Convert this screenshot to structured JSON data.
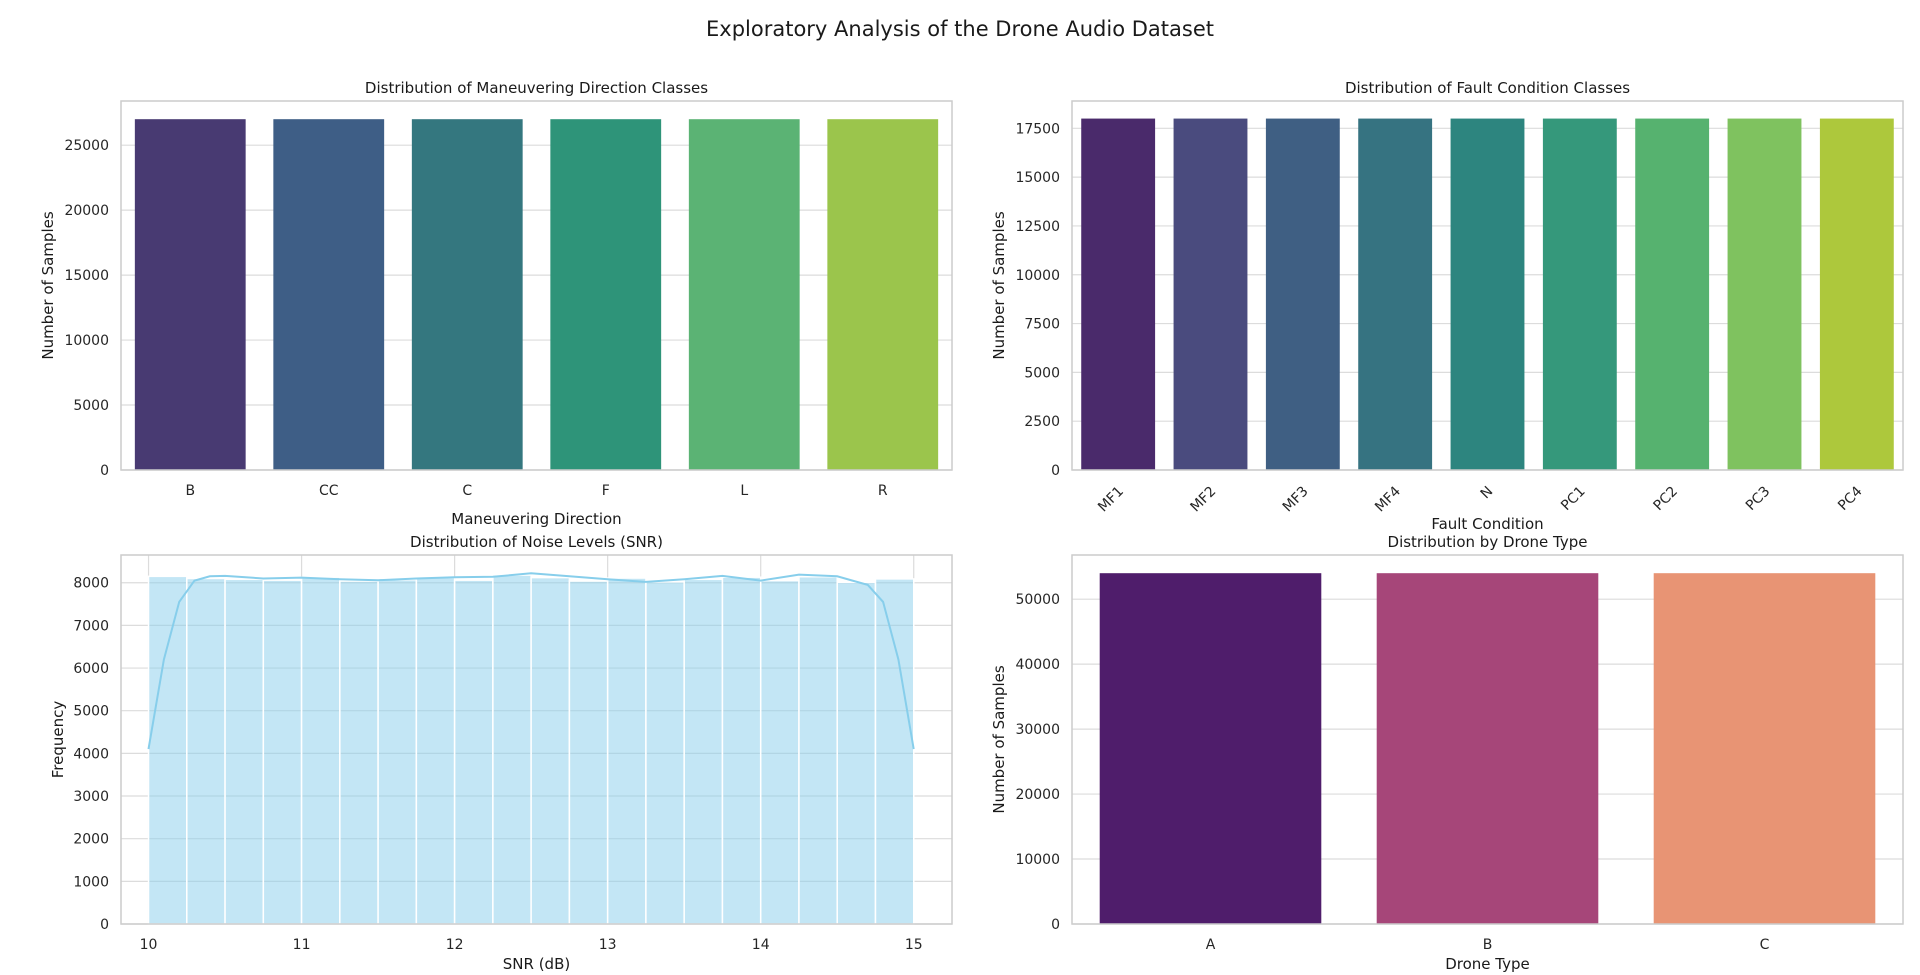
{
  "figure": {
    "title": "Exploratory Analysis of the Drone Audio Dataset"
  },
  "chart_data": [
    {
      "type": "bar",
      "title": "Distribution of Maneuvering Direction Classes",
      "xlabel": "Maneuvering Direction",
      "ylabel": "Number of Samples",
      "categories": [
        "B",
        "CC",
        "C",
        "F",
        "L",
        "R"
      ],
      "values": [
        27000,
        27000,
        27000,
        27000,
        27000,
        27000
      ],
      "colors": [
        "#483a72",
        "#3e5e86",
        "#34777f",
        "#2e9479",
        "#5bb374",
        "#9bc54c"
      ],
      "ylim": [
        0,
        28400
      ],
      "yticks": [
        0,
        5000,
        10000,
        15000,
        20000,
        25000
      ],
      "grid": true
    },
    {
      "type": "bar",
      "title": "Distribution of Fault Condition Classes",
      "xlabel": "Fault Condition",
      "ylabel": "Number of Samples",
      "categories": [
        "MF1",
        "MF2",
        "MF3",
        "MF4",
        "N",
        "PC1",
        "PC2",
        "PC3",
        "PC4"
      ],
      "values": [
        18000,
        18000,
        18000,
        18000,
        18000,
        18000,
        18000,
        18000,
        18000
      ],
      "colors": [
        "#4a2a6b",
        "#4a4b7e",
        "#3f5f83",
        "#367381",
        "#2d857f",
        "#35987b",
        "#56b26f",
        "#7fc25f",
        "#adc83c"
      ],
      "ylim": [
        0,
        18900
      ],
      "yticks": [
        0,
        2500,
        5000,
        7500,
        10000,
        12500,
        15000,
        17500
      ],
      "tick_rotation": 45,
      "grid": true
    },
    {
      "type": "histogram",
      "title": "Distribution of Noise Levels (SNR)",
      "xlabel": "SNR (dB)",
      "ylabel": "Frequency",
      "bin_edges": [
        10,
        10.25,
        10.5,
        10.75,
        11,
        11.25,
        11.5,
        11.75,
        12,
        12.25,
        12.5,
        12.75,
        13,
        13.25,
        13.5,
        13.75,
        14,
        14.25,
        14.5,
        14.75,
        15
      ],
      "counts": [
        8150,
        8100,
        8080,
        8060,
        8130,
        8040,
        8070,
        8120,
        8060,
        8180,
        8120,
        8040,
        8110,
        8020,
        8080,
        8130,
        8050,
        8140,
        8010,
        8090
      ],
      "kde": {
        "x": [
          10,
          10.1,
          10.2,
          10.3,
          10.4,
          10.5,
          10.75,
          11,
          11.25,
          11.5,
          11.75,
          12,
          12.25,
          12.5,
          12.75,
          13,
          13.25,
          13.5,
          13.75,
          14,
          14.25,
          14.5,
          14.6,
          14.7,
          14.8,
          14.9,
          15
        ],
        "y": [
          4100,
          6200,
          7550,
          8050,
          8150,
          8160,
          8100,
          8120,
          8080,
          8060,
          8100,
          8130,
          8140,
          8220,
          8150,
          8080,
          8020,
          8080,
          8160,
          8050,
          8190,
          8150,
          8050,
          7950,
          7550,
          6200,
          4100
        ]
      },
      "color": "#87ceeb",
      "xlim": [
        9.82,
        15.25
      ],
      "ylim": [
        0,
        8650
      ],
      "xticks": [
        10,
        11,
        12,
        13,
        14,
        15
      ],
      "yticks": [
        0,
        1000,
        2000,
        3000,
        4000,
        5000,
        6000,
        7000,
        8000
      ],
      "grid": true
    },
    {
      "type": "bar",
      "title": "Distribution by Drone Type",
      "xlabel": "Drone Type",
      "ylabel": "Number of Samples",
      "categories": [
        "A",
        "B",
        "C"
      ],
      "values": [
        54000,
        54000,
        54000
      ],
      "colors": [
        "#4f1d6b",
        "#a64679",
        "#e89474"
      ],
      "ylim": [
        0,
        56800
      ],
      "yticks": [
        0,
        10000,
        20000,
        30000,
        40000,
        50000
      ],
      "grid": true
    }
  ]
}
